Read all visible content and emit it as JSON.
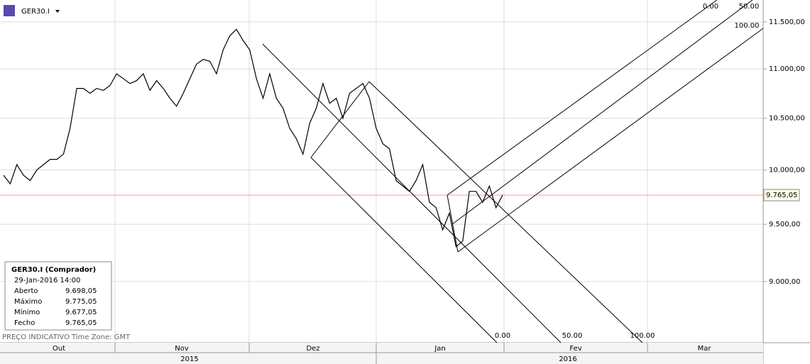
{
  "header": {
    "symbol": "GER30.I"
  },
  "chart_data": {
    "type": "line",
    "series": [
      {
        "name": "GER30.I",
        "color": "#000000",
        "values": [
          9950,
          9870,
          10050,
          9950,
          9900,
          10000,
          10050,
          10100,
          10100,
          10150,
          10400,
          10800,
          10800,
          10750,
          10800,
          10780,
          10830,
          10950,
          10900,
          10850,
          10880,
          10950,
          10780,
          10880,
          10800,
          10700,
          10620,
          10750,
          10900,
          11050,
          11100,
          11080,
          10950,
          11200,
          11350,
          11420,
          11300,
          11200,
          10900,
          10700,
          10950,
          10700,
          10600,
          10400,
          10300,
          10150,
          10450,
          10600,
          10850,
          10650,
          10700,
          10500,
          10750,
          10800,
          10850,
          10700,
          10400,
          10250,
          10200,
          9900,
          9850,
          9800,
          9900,
          10050,
          9700,
          9650,
          9450,
          9600,
          9300,
          9350,
          9800,
          9800,
          9700,
          9850,
          9650,
          9765
        ]
      }
    ],
    "ylim": [
      8495,
      11740
    ],
    "log_scale": true,
    "grid": true,
    "yticks": [
      {
        "value": 9000,
        "label": "9.000,00"
      },
      {
        "value": 9500,
        "label": "9.500,00"
      },
      {
        "value": 10000,
        "label": "10.000,00"
      },
      {
        "value": 10500,
        "label": "10.500,00"
      },
      {
        "value": 11000,
        "label": "11.000,00"
      },
      {
        "value": 11500,
        "label": "11.500,00"
      }
    ],
    "current_price": {
      "value": 9765.05,
      "label": "9.765,05",
      "color": "#c0504d"
    },
    "months": [
      "Out",
      "Nov",
      "Dez",
      "Jan",
      "Fev",
      "Mar"
    ],
    "years": [
      "2015",
      "2016"
    ],
    "fork_labels": [
      "0.00",
      "50.00",
      "100.00",
      "0.00",
      "50.00",
      "100.00"
    ]
  },
  "info_box": {
    "title": "GER30.I (Comprador)",
    "date": "29-Jan-2016 14:00",
    "rows": [
      [
        "Aberto",
        "9.698,05"
      ],
      [
        "Máximo",
        "9.775,05"
      ],
      [
        "Mínimo",
        "9.677,05"
      ],
      [
        "Fecho",
        "9.765,05"
      ]
    ]
  },
  "footer": {
    "note": "PREÇO INDICATIVO",
    "timezone": "Time Zone: GMT"
  }
}
